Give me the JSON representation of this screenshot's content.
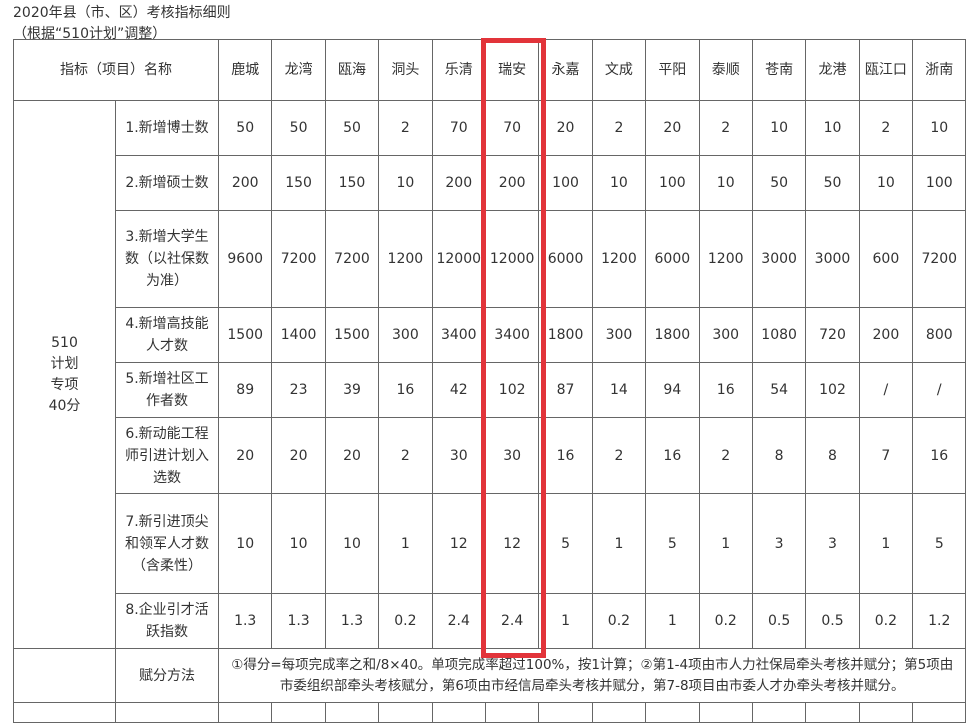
{
  "title": "2020年县（市、区）考核指标细则",
  "subtitle": "（根据“510计划”调整）",
  "header": {
    "name_col": "指标（项目）名称",
    "regions": [
      "鹿城",
      "龙湾",
      "瓯海",
      "洞头",
      "乐清",
      "瑞安",
      "永嘉",
      "文成",
      "平阳",
      "泰顺",
      "苍南",
      "龙港",
      "瓯江口",
      "浙南"
    ]
  },
  "group_label": "510\n计划\n专项\n40分",
  "rows": [
    {
      "label": "1.新增博士数",
      "values": [
        "50",
        "50",
        "50",
        "2",
        "70",
        "70",
        "20",
        "2",
        "20",
        "2",
        "10",
        "10",
        "2",
        "10"
      ]
    },
    {
      "label": "2.新增硕士数",
      "values": [
        "200",
        "150",
        "150",
        "10",
        "200",
        "200",
        "100",
        "10",
        "100",
        "10",
        "50",
        "50",
        "10",
        "100"
      ]
    },
    {
      "label": "3.新增大学生数（以社保数为准）",
      "values": [
        "9600",
        "7200",
        "7200",
        "1200",
        "12000",
        "12000",
        "6000",
        "1200",
        "6000",
        "1200",
        "3000",
        "3000",
        "600",
        "7200"
      ]
    },
    {
      "label": "4.新增高技能人才数",
      "values": [
        "1500",
        "1400",
        "1500",
        "300",
        "3400",
        "3400",
        "1800",
        "300",
        "1800",
        "300",
        "1080",
        "720",
        "200",
        "800"
      ]
    },
    {
      "label": "5.新增社区工作者数",
      "values": [
        "89",
        "23",
        "39",
        "16",
        "42",
        "102",
        "87",
        "14",
        "94",
        "16",
        "54",
        "102",
        "/",
        "/"
      ]
    },
    {
      "label": "6.新动能工程师引进计划入选数",
      "values": [
        "20",
        "20",
        "20",
        "2",
        "30",
        "30",
        "16",
        "2",
        "16",
        "2",
        "8",
        "8",
        "7",
        "16"
      ]
    },
    {
      "label": "7.新引进顶尖和领军人才数（含柔性）",
      "values": [
        "10",
        "10",
        "10",
        "1",
        "12",
        "12",
        "5",
        "1",
        "5",
        "1",
        "3",
        "3",
        "1",
        "5"
      ]
    },
    {
      "label": "8.企业引才活跃指数",
      "values": [
        "1.3",
        "1.3",
        "1.3",
        "0.2",
        "2.4",
        "2.4",
        "1",
        "0.2",
        "1",
        "0.2",
        "0.5",
        "0.5",
        "0.2",
        "1.2"
      ]
    }
  ],
  "method": {
    "label": "赋分方法",
    "text": "①得分=每项完成率之和/8×40。单项完成率超过100%，按1计算；②第1-4项由市人力社保局牵头考核并赋分；第5项由市委组织部牵头考核赋分，第6项由市经信局牵头考核并赋分，第7-8项目由市委人才办牵头考核并赋分。"
  },
  "highlight_color": "#e2343a"
}
